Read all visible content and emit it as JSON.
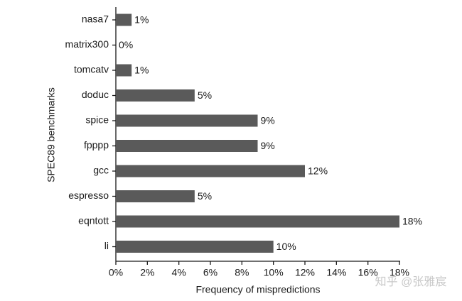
{
  "chart_data": {
    "type": "hbar",
    "ylabel": "SPEC89 benchmarks",
    "xlabel": "Frequency of mispredictions",
    "categories": [
      "nasa7",
      "matrix300",
      "tomcatv",
      "doduc",
      "spice",
      "fpppp",
      "gcc",
      "espresso",
      "eqntott",
      "li"
    ],
    "values": [
      1,
      0,
      1,
      5,
      9,
      9,
      12,
      5,
      18,
      10
    ],
    "value_labels": [
      "1%",
      "0%",
      "1%",
      "5%",
      "9%",
      "9%",
      "12%",
      "5%",
      "18%",
      "10%"
    ],
    "color": "#5a5a5a",
    "xlim": [
      0,
      18
    ],
    "xticks": [
      {
        "value": 0,
        "label": "0%"
      },
      {
        "value": 2,
        "label": "2%"
      },
      {
        "value": 4,
        "label": "4%"
      },
      {
        "value": 6,
        "label": "6%"
      },
      {
        "value": 8,
        "label": "8%"
      },
      {
        "value": 10,
        "label": "10%"
      },
      {
        "value": 12,
        "label": "12%"
      },
      {
        "value": 14,
        "label": "14%"
      },
      {
        "value": 16,
        "label": "16%"
      },
      {
        "value": 18,
        "label": "18%"
      }
    ],
    "watermark": "知乎 @张雅宸"
  }
}
